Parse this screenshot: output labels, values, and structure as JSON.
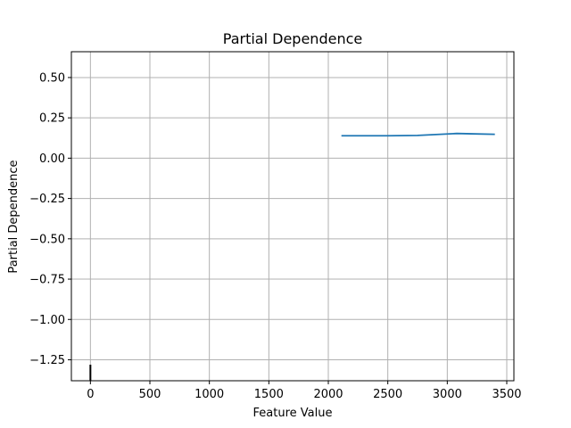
{
  "chart_data": {
    "type": "line",
    "title": "Partial Dependence",
    "xlabel": "Feature Value",
    "ylabel": "Partial Dependence",
    "xlim": [
      -160,
      3560
    ],
    "ylim": [
      -1.38,
      0.66
    ],
    "xticks": [
      0,
      500,
      1000,
      1500,
      2000,
      2500,
      3000,
      3500
    ],
    "xtick_labels": [
      "0",
      "500",
      "1000",
      "1500",
      "2000",
      "2500",
      "3000",
      "3500"
    ],
    "yticks": [
      0.5,
      0.25,
      0.0,
      -0.25,
      -0.5,
      -0.75,
      -1.0,
      -1.25
    ],
    "ytick_labels": [
      "0.50",
      "0.25",
      "0.00",
      "−0.25",
      "−0.50",
      "−0.75",
      "−1.00",
      "−1.25"
    ],
    "grid": true,
    "series": [
      {
        "color": "#1f77b4",
        "x": [
          2110,
          2500,
          2750,
          3000,
          3080,
          3200,
          3400
        ],
        "y": [
          0.139,
          0.139,
          0.141,
          0.15,
          0.153,
          0.151,
          0.148
        ]
      }
    ],
    "rug": {
      "color": "#000000",
      "x": [
        0
      ]
    }
  }
}
